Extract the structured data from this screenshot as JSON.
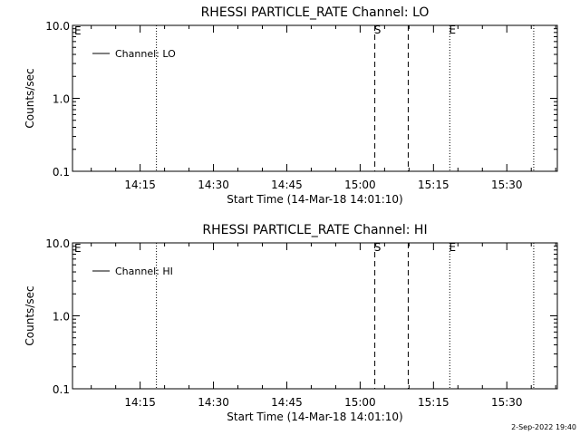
{
  "footer_timestamp": "2-Sep-2022 19:40",
  "chart_data": [
    {
      "type": "line",
      "title": "RHESSI PARTICLE_RATE Channel: LO",
      "xlabel": "Start Time (14-Mar-18 14:01:10)",
      "ylabel": "Counts/sec",
      "y_scale": "log",
      "ylim": [
        0.1,
        10.0
      ],
      "y_ticks": [
        {
          "value": 0.1,
          "label": "0.1"
        },
        {
          "value": 1.0,
          "label": "1.0"
        },
        {
          "value": 10.0,
          "label": "10.0"
        }
      ],
      "xlim": [
        "14:01:10",
        "15:40:20"
      ],
      "x_ticks": [
        {
          "value": "14:15",
          "label": "14:15"
        },
        {
          "value": "14:30",
          "label": "14:30"
        },
        {
          "value": "14:45",
          "label": "14:45"
        },
        {
          "value": "15:00",
          "label": "15:00"
        },
        {
          "value": "15:15",
          "label": "15:15"
        },
        {
          "value": "15:30",
          "label": "15:30"
        }
      ],
      "series": [
        {
          "name": "Channel: LO",
          "values": []
        }
      ],
      "legend": "top-left",
      "grid": false,
      "vlines": [
        {
          "time": "14:18:20",
          "style": "dotted",
          "label": ""
        },
        {
          "time": "15:03:00",
          "style": "dashed",
          "label": "S"
        },
        {
          "time": "15:09:50",
          "style": "dashed",
          "label": ""
        },
        {
          "time": "15:18:20",
          "style": "dotted",
          "label": "E"
        },
        {
          "time": "15:35:30",
          "style": "dotted",
          "label": ""
        }
      ],
      "corner_label": "E"
    },
    {
      "type": "line",
      "title": "RHESSI PARTICLE_RATE Channel: HI",
      "xlabel": "Start Time (14-Mar-18 14:01:10)",
      "ylabel": "Counts/sec",
      "y_scale": "log",
      "ylim": [
        0.1,
        10.0
      ],
      "y_ticks": [
        {
          "value": 0.1,
          "label": "0.1"
        },
        {
          "value": 1.0,
          "label": "1.0"
        },
        {
          "value": 10.0,
          "label": "10.0"
        }
      ],
      "xlim": [
        "14:01:10",
        "15:40:20"
      ],
      "x_ticks": [
        {
          "value": "14:15",
          "label": "14:15"
        },
        {
          "value": "14:30",
          "label": "14:30"
        },
        {
          "value": "14:45",
          "label": "14:45"
        },
        {
          "value": "15:00",
          "label": "15:00"
        },
        {
          "value": "15:15",
          "label": "15:15"
        },
        {
          "value": "15:30",
          "label": "15:30"
        }
      ],
      "series": [
        {
          "name": "Channel: HI",
          "values": []
        }
      ],
      "legend": "top-left",
      "grid": false,
      "vlines": [
        {
          "time": "14:18:20",
          "style": "dotted",
          "label": ""
        },
        {
          "time": "15:03:00",
          "style": "dashed",
          "label": "S"
        },
        {
          "time": "15:09:50",
          "style": "dashed",
          "label": ""
        },
        {
          "time": "15:18:20",
          "style": "dotted",
          "label": "E"
        },
        {
          "time": "15:35:30",
          "style": "dotted",
          "label": ""
        }
      ],
      "corner_label": "E"
    }
  ]
}
